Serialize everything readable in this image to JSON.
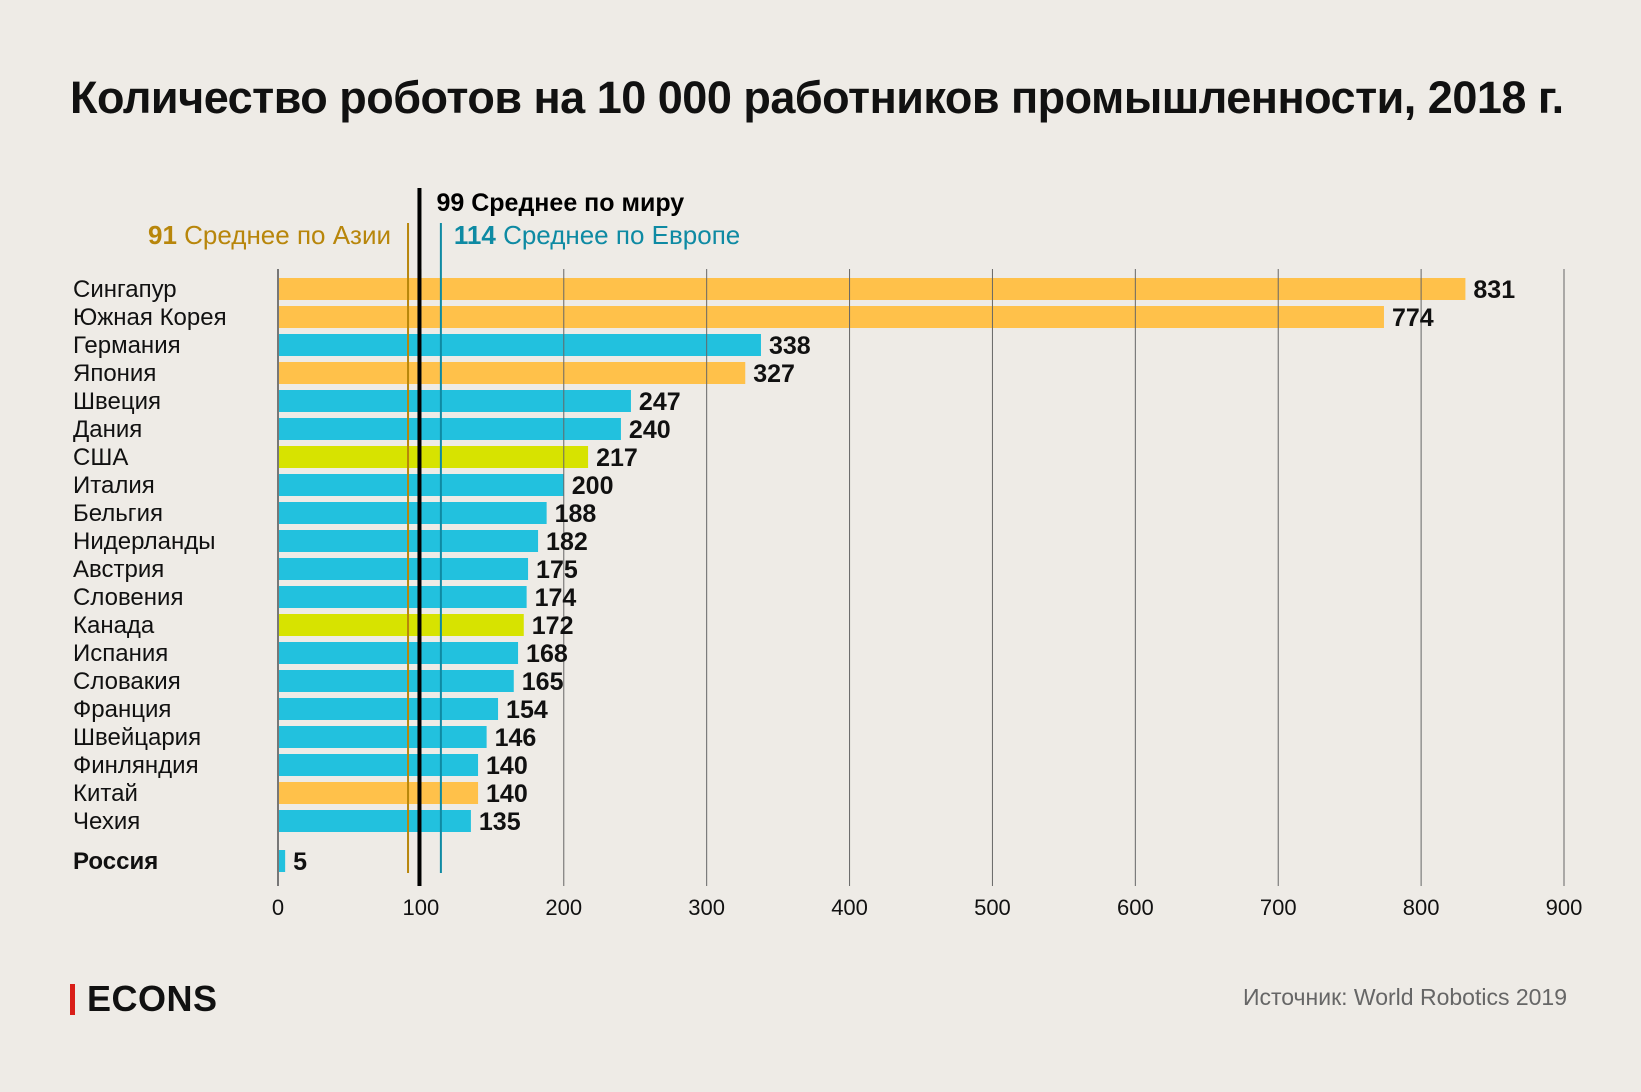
{
  "chart_data": {
    "type": "bar",
    "orientation": "horizontal",
    "title": "Количество роботов на 10 000 работников промышленности, 2018 г.",
    "xlabel": "",
    "ylabel": "",
    "xlim": [
      0,
      900
    ],
    "x_ticks": [
      0,
      100,
      200,
      300,
      400,
      500,
      600,
      700,
      800,
      900
    ],
    "grid": true,
    "colors": {
      "asia": "#ffc14a",
      "europe": "#22c1de",
      "america": "#d7e300",
      "asia_line": "#b8860b",
      "europe_line": "#0e8aa3",
      "world_line": "#000000"
    },
    "categories": [
      "Сингапур",
      "Южная Корея",
      "Германия",
      "Япония",
      "Швеция",
      "Дания",
      "США",
      "Италия",
      "Бельгия",
      "Нидерланды",
      "Австрия",
      "Словения",
      "Канада",
      "Испания",
      "Словакия",
      "Франция",
      "Швейцария",
      "Финляндия",
      "Китай",
      "Чехия",
      "Россия"
    ],
    "values": [
      831,
      774,
      338,
      327,
      247,
      240,
      217,
      200,
      188,
      182,
      175,
      174,
      172,
      168,
      165,
      154,
      146,
      140,
      140,
      135,
      5
    ],
    "groups": [
      "asia",
      "asia",
      "europe",
      "asia",
      "europe",
      "europe",
      "america",
      "europe",
      "europe",
      "europe",
      "europe",
      "europe",
      "america",
      "europe",
      "europe",
      "europe",
      "europe",
      "europe",
      "asia",
      "europe",
      "europe"
    ],
    "highlight": "Россия",
    "reference_lines": [
      {
        "key": "asia",
        "value": 91,
        "label_value": "91",
        "label_text": "Среднее по Азии"
      },
      {
        "key": "world",
        "value": 99,
        "label_value": "99",
        "label_text": "Среднее по миру"
      },
      {
        "key": "europe",
        "value": 114,
        "label_value": "114",
        "label_text": "Среднее по Европе"
      }
    ]
  },
  "header": {
    "title": "Количество роботов на 10 000 работников промышленности, 2018 г."
  },
  "footer": {
    "logo": "ECONS",
    "source": "Источник: World Robotics 2019"
  }
}
